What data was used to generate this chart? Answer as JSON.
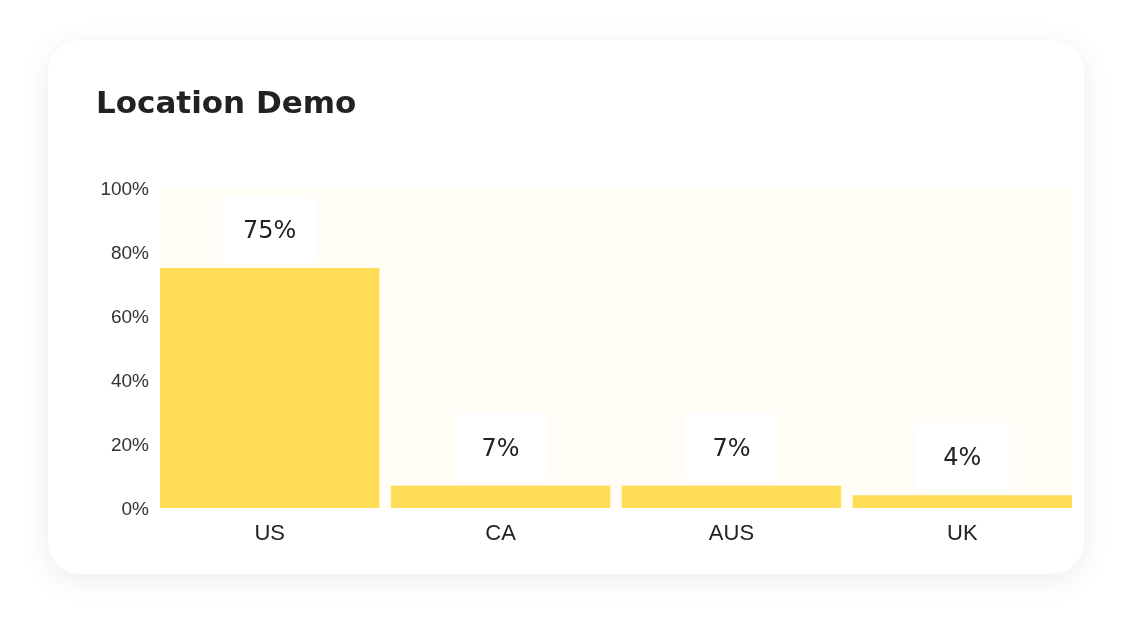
{
  "chart_data": {
    "type": "bar",
    "title": "Location Demo",
    "categories": [
      "US",
      "CA",
      "AUS",
      "UK"
    ],
    "values": [
      75,
      7,
      7,
      4
    ],
    "value_labels": [
      "75%",
      "7%",
      "7%",
      "4%"
    ],
    "color": "#ffdd57",
    "ylim": [
      0,
      100
    ],
    "yticks": [
      {
        "value": 0,
        "label": "0%"
      },
      {
        "value": 20,
        "label": "20%"
      },
      {
        "value": 40,
        "label": "40%"
      },
      {
        "value": 60,
        "label": "60%"
      },
      {
        "value": 80,
        "label": "80%"
      },
      {
        "value": 100,
        "label": "100%"
      }
    ]
  }
}
